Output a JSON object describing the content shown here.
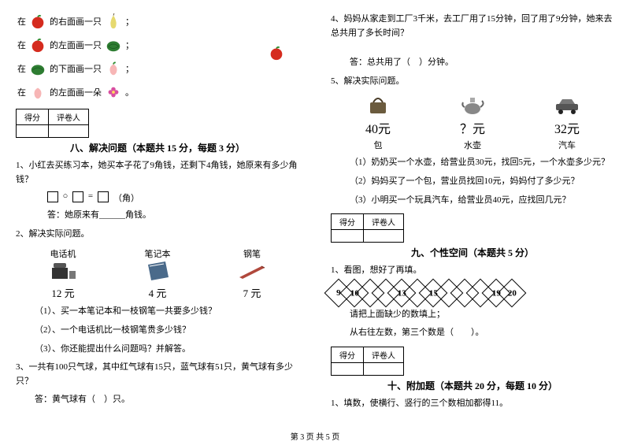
{
  "colors": {
    "text": "#000000",
    "bg": "#ffffff",
    "apple_red": "#d52b1e",
    "leaf_green": "#2e8b2e",
    "pear_yellow": "#e6d96f",
    "watermelon": "#2e7d32",
    "peach": "#f7b6b6",
    "flower": "#d94fa0",
    "bag": "#6b5b3e",
    "kettle": "#888888",
    "car": "#555555",
    "phone": "#333333",
    "notebook": "#4a6a8a",
    "pen": "#b0483c"
  },
  "left": {
    "draw_rows": [
      {
        "prefix": "在",
        "obj": "apple",
        "mid": "的右面画一只",
        "target": "pear",
        "suffix": "；"
      },
      {
        "prefix": "在",
        "obj": "apple",
        "mid": "的左面画一只",
        "target": "watermelon",
        "suffix": "；"
      },
      {
        "prefix": "在",
        "obj": "watermelon",
        "mid": "的下面画一只",
        "target": "peach",
        "suffix": "；"
      },
      {
        "prefix": "在",
        "obj": "peach",
        "mid": "的左面画一朵",
        "target": "flower",
        "suffix": "。"
      }
    ],
    "score_header": [
      "得分",
      "评卷人"
    ],
    "section8_title": "八、解决问题（本题共 15 分，每题 3 分）",
    "q1": "1、小红去买练习本，她买本子花了9角钱，还剩下4角钱，她原来有多少角钱？",
    "q1_box_unit": "（角）",
    "q1_ans_label": "答：她原来有______角钱。",
    "q2": "2、解决实际问题。",
    "products": [
      {
        "name": "电话机",
        "icon": "phone",
        "price": "12 元"
      },
      {
        "name": "笔记本",
        "icon": "notebook",
        "price": "4 元"
      },
      {
        "name": "钢笔",
        "icon": "pen",
        "price": "7 元"
      }
    ],
    "q2_1": "（1）、买一本笔记本和一枝钢笔一共要多少钱？",
    "q2_2": "（2）、一个电话机比一枝钢笔贵多少钱？",
    "q2_3": "（3）、你还能提出什么问题吗？并解答。",
    "q3": "3、一共有100只气球，其中红气球有15只，蓝气球有51只，黄气球有多少只？",
    "q3_ans": "答：黄气球有（　）只。"
  },
  "right": {
    "q4": "4、妈妈从家走到工厂3千米，去工厂用了15分钟，回了用了9分钟，她来去总共用了多长时间？",
    "q4_ans": "答：总共用了（　）分钟。",
    "q5": "5、解决实际问题。",
    "products": [
      {
        "name": "包",
        "icon": "bag",
        "price": "40元"
      },
      {
        "name": "水壶",
        "icon": "kettle",
        "price": "？元"
      },
      {
        "name": "汽车",
        "icon": "car",
        "price": "32元"
      }
    ],
    "q5_1": "（1）奶奶买一个水壶，给营业员30元，找回5元，一个水壶多少元？",
    "q5_2": "（2）妈妈买了一个包，营业员找回10元，妈妈付了多少元？",
    "q5_3": "（3）小明买一个玩具汽车，给营业员40元，应找回几元？",
    "score_header": [
      "得分",
      "评卷人"
    ],
    "section9_title": "九、个性空间（本题共 5 分）",
    "q9_1": "1、看图，想好了再填。",
    "diamonds": [
      "9",
      "10",
      "",
      "",
      "13",
      "",
      "15",
      "",
      "",
      "",
      "19",
      "20"
    ],
    "q9_fill1": "请把上面缺少的数填上；",
    "q9_fill2": "从右往左数，第三个数是（　　）。",
    "section10_title": "十、附加题（本题共 20 分，每题 10 分）",
    "q10_1": "1、填数，使横行、竖行的三个数相加都得11。"
  },
  "footer": "第 3 页  共 5 页"
}
